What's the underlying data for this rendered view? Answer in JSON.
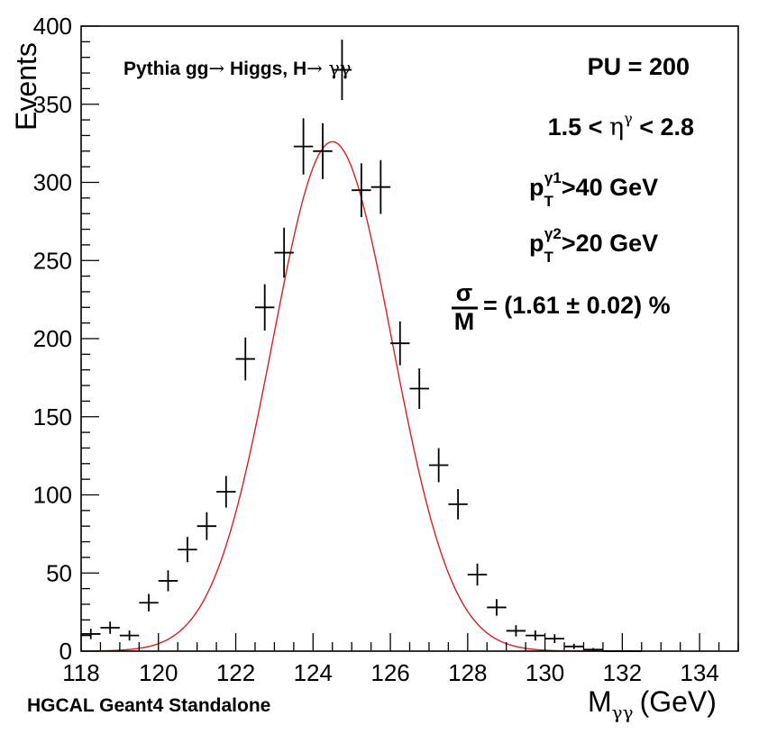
{
  "chart_data": {
    "type": "scatter",
    "title": "",
    "xlabel": {
      "main": "M",
      "sub": "γγ",
      "unit": "(GeV)"
    },
    "ylabel": "Events",
    "xlim": [
      118,
      135
    ],
    "ylim": [
      0,
      400
    ],
    "x_ticks": [
      "118",
      "120",
      "122",
      "124",
      "126",
      "128",
      "130",
      "132",
      "134"
    ],
    "y_ticks": [
      "0",
      "50",
      "100",
      "150",
      "200",
      "250",
      "300",
      "350",
      "400"
    ],
    "bin_width": 0.5,
    "series": [
      {
        "x": [
          118.25,
          118.75,
          119.25,
          119.75,
          120.25,
          120.75,
          121.25,
          121.75,
          122.25,
          122.75,
          123.25,
          123.75,
          124.25,
          124.75,
          125.25,
          125.75,
          126.25,
          126.75,
          127.25,
          127.75,
          128.25,
          128.75,
          129.25,
          129.75,
          130.25,
          130.75,
          131.25,
          131.75,
          132.25
        ],
        "y": [
          11,
          15,
          10,
          31,
          45,
          65,
          80,
          102,
          187,
          220,
          255,
          323,
          320,
          372,
          295,
          297,
          197,
          168,
          119,
          94,
          49,
          28,
          13,
          10,
          8,
          3,
          1,
          0,
          0
        ],
        "yerr": [
          3.3,
          3.9,
          3.2,
          5.6,
          6.7,
          8.1,
          8.9,
          10.1,
          13.7,
          14.8,
          16,
          18,
          17.9,
          19.3,
          17.2,
          17.2,
          14,
          13,
          10.9,
          9.7,
          7,
          5.3,
          3.6,
          3.2,
          2.8,
          1.7,
          1,
          0,
          0
        ]
      },
      {
        "type": "line",
        "color": "#dd1e1e",
        "gaussian_fit": {
          "amplitude": 326,
          "mean": 124.5,
          "sigma": 1.55
        },
        "x_range": [
          118.0,
          132.5
        ]
      }
    ],
    "annotations": {
      "process": {
        "prefix": "Pythia gg",
        "arrow1": "→",
        "mid": " Higgs, H",
        "arrow2": "→",
        "gamma": " γγ"
      },
      "pu": "PU = 200",
      "eta": {
        "left": "1.5 < ",
        "symbol": "η",
        "sup": "γ",
        "right": " < 2.8"
      },
      "pt1": {
        "p": "p",
        "sub": "T",
        "sup": "γ1",
        "rest": ">40 GeV"
      },
      "pt2": {
        "p": "p",
        "sub": "T",
        "sup": "γ2",
        "rest": ">20 GeV"
      },
      "resolution": {
        "num": "σ",
        "den": "M",
        "rest": "= (1.61 ± 0.02) %"
      },
      "footer": "HGCAL Geant4 Standalone"
    },
    "grid": false,
    "legend": "none"
  }
}
